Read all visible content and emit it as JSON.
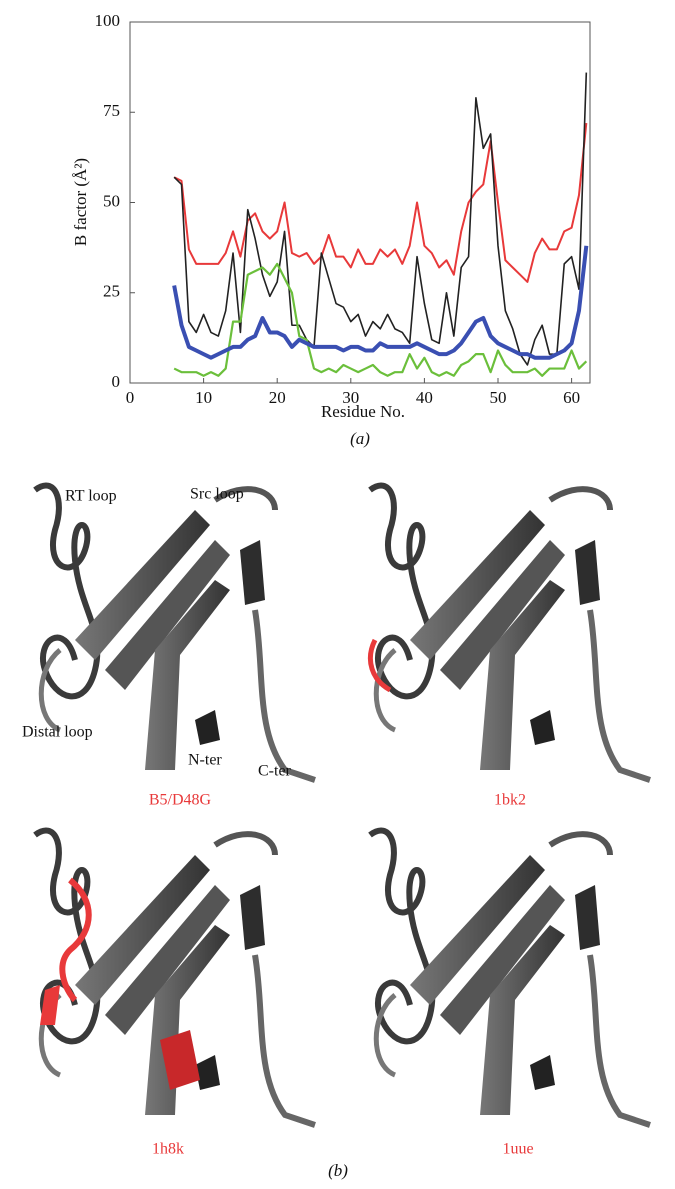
{
  "chart_data": {
    "type": "line",
    "y_label": "B factor (Å²)",
    "x_label": "Residue No.",
    "caption": "(a)",
    "x": [
      6,
      7,
      8,
      9,
      10,
      11,
      12,
      13,
      14,
      15,
      16,
      17,
      18,
      19,
      20,
      21,
      22,
      23,
      24,
      25,
      26,
      27,
      28,
      29,
      30,
      31,
      32,
      33,
      34,
      35,
      36,
      37,
      38,
      39,
      40,
      41,
      42,
      43,
      44,
      45,
      46,
      47,
      48,
      49,
      50,
      51,
      52,
      53,
      54,
      55,
      56,
      57,
      58,
      59,
      60,
      61,
      62
    ],
    "series": [
      {
        "color": "#e8393a",
        "values": [
          57,
          56,
          37,
          33,
          33,
          33,
          33,
          36,
          42,
          35,
          45,
          47,
          42,
          40,
          42,
          50,
          36,
          35,
          36,
          33,
          35,
          41,
          35,
          35,
          32,
          37,
          33,
          33,
          37,
          35,
          37,
          33,
          38,
          50,
          38,
          36,
          32,
          34,
          30,
          42,
          50,
          53,
          55,
          67,
          50,
          34,
          32,
          30,
          28,
          36,
          40,
          37,
          37,
          42,
          43,
          52,
          72
        ]
      },
      {
        "color": "#222222",
        "values": [
          57,
          55,
          17,
          14,
          19,
          14,
          13,
          20,
          36,
          14,
          48,
          40,
          30,
          24,
          28,
          42,
          16,
          16,
          12,
          10,
          36,
          29,
          22,
          21,
          17,
          19,
          13,
          17,
          15,
          19,
          15,
          14,
          11,
          35,
          22,
          12,
          11,
          25,
          13,
          32,
          35,
          79,
          65,
          69,
          38,
          20,
          15,
          8,
          5,
          12,
          16,
          8,
          8,
          33,
          35,
          26,
          86
        ]
      },
      {
        "color": "#6bbf3b",
        "values": [
          4,
          3,
          3,
          3,
          2,
          3,
          2,
          4,
          17,
          17,
          30,
          31,
          32,
          30,
          33,
          29,
          25,
          13,
          12,
          4,
          3,
          4,
          3,
          5,
          4,
          3,
          4,
          5,
          3,
          2,
          3,
          3,
          8,
          4,
          7,
          3,
          2,
          3,
          2,
          5,
          6,
          8,
          8,
          3,
          9,
          5,
          3,
          3,
          3,
          4,
          2,
          4,
          4,
          4,
          9,
          4,
          6
        ]
      },
      {
        "color": "#3a4fb2",
        "values": [
          27,
          16,
          10,
          9,
          8,
          7,
          8,
          9,
          10,
          10,
          12,
          13,
          18,
          14,
          14,
          13,
          10,
          12,
          11,
          10,
          10,
          10,
          10,
          9,
          10,
          10,
          9,
          9,
          11,
          10,
          10,
          10,
          10,
          11,
          10,
          9,
          8,
          8,
          9,
          11,
          14,
          17,
          18,
          13,
          11,
          10,
          9,
          8,
          8,
          7,
          7,
          7,
          8,
          9,
          11,
          20,
          38
        ]
      }
    ],
    "xlim": [
      0,
      62.5
    ],
    "ylim": [
      0,
      100
    ],
    "xticks": [
      0,
      10,
      20,
      30,
      40,
      50,
      60
    ],
    "yticks": [
      0,
      25,
      50,
      75,
      100
    ]
  },
  "figure_b": {
    "caption": "(b)",
    "annotations": [
      "RT loop",
      "Src loop",
      "Distal loop",
      "N-ter",
      "C-ter"
    ],
    "structures": [
      "B5/D48G",
      "1bk2",
      "1h8k",
      "1uue"
    ]
  }
}
